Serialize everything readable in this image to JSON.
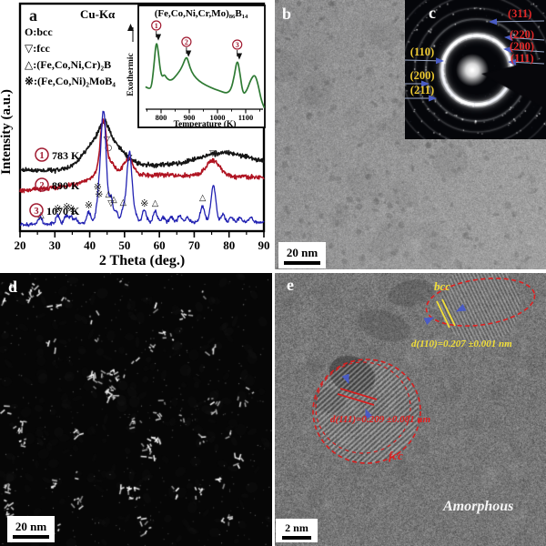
{
  "figure": {
    "panels": {
      "a": {
        "label": "a"
      },
      "b": {
        "label": "b",
        "scale_bar": "20 nm"
      },
      "c": {
        "label": "c",
        "left_labels": [
          {
            "text": "(110)"
          },
          {
            "text": "(200)"
          },
          {
            "text": "(211)"
          }
        ],
        "right_labels": [
          {
            "text": "(311)"
          },
          {
            "text": "(220)"
          },
          {
            "text": "(200)"
          },
          {
            "text": "(111)"
          }
        ]
      },
      "d": {
        "label": "d",
        "scale_bar": "20 nm"
      },
      "e": {
        "label": "e",
        "scale_bar": "2 nm",
        "annotations": {
          "bcc_label": "bcc",
          "bcc_spacing": "d(110)=0.207 ±0.001 nm",
          "fcc_label": "fcc",
          "fcc_spacing": "d(111)=0.209 ±0.001 nm",
          "matrix": "Amorphous"
        }
      }
    }
  },
  "chart_data": [
    {
      "id": "xrd",
      "type": "line",
      "title": "Cu-Kα",
      "xlabel": "2 Theta (deg.)",
      "ylabel": "Intensity (a.u.)",
      "xlim": [
        20,
        90
      ],
      "xticks": [
        20,
        30,
        40,
        50,
        60,
        70,
        80,
        90
      ],
      "legend": [
        {
          "symbol": "O",
          "phase": "bcc"
        },
        {
          "symbol": "▽",
          "phase": "fcc"
        },
        {
          "symbol": "△",
          "phase": "(Fe,Co,Ni,Cr)₂B"
        },
        {
          "symbol": "※",
          "phase": "(Fe,Co,Ni)₂MoB₄"
        }
      ],
      "series": [
        {
          "index": "1",
          "annealing_temp": "783 K",
          "color": "#151515",
          "noise": 2.3,
          "baseline": [
            [
              20,
              187
            ],
            [
              35,
              188
            ],
            [
              55,
              182
            ],
            [
              75,
              180
            ],
            [
              90,
              181
            ]
          ],
          "peaks": [
            {
              "t": 43.8,
              "a": 38,
              "w": 4.6
            },
            {
              "t": 44.1,
              "a": 15,
              "w": 1.2
            },
            {
              "t": 79,
              "a": 12,
              "w": 7
            }
          ],
          "markers": [
            {
              "sym": "▽",
              "t": 44.9,
              "y": 156
            },
            {
              "sym": "○",
              "t": 45.4,
              "y": 165
            }
          ]
        },
        {
          "index": "2",
          "annealing_temp": "890 K",
          "color": "#b01422",
          "noise": 2.2,
          "baseline": [
            [
              20,
              210
            ],
            [
              40,
              202
            ],
            [
              47,
              194
            ],
            [
              60,
              192
            ],
            [
              90,
              195
            ]
          ],
          "peaks": [
            {
              "t": 44,
              "a": 8,
              "w": 4.5
            },
            {
              "t": 43.9,
              "a": 58,
              "w": 0.9
            },
            {
              "t": 46.4,
              "a": 8,
              "w": 0.8
            },
            {
              "t": 51.2,
              "a": 17,
              "w": 1.3
            },
            {
              "t": 75.4,
              "a": 17,
              "w": 1.9
            }
          ],
          "markers": [
            {
              "sym": "▽",
              "t": 51.3,
              "y": 176
            },
            {
              "sym": "▽",
              "t": 75.3,
              "y": 171
            }
          ]
        },
        {
          "index": "3",
          "annealing_temp": "1070 K",
          "color": "#2222b2",
          "noise": 1.7,
          "baseline": [
            [
              20,
              247
            ],
            [
              40,
              245
            ],
            [
              50,
              244
            ],
            [
              90,
              244
            ]
          ],
          "peaks": [
            {
              "t": 25.8,
              "a": 7,
              "w": 0.55
            },
            {
              "t": 30.8,
              "a": 9,
              "w": 0.55
            },
            {
              "t": 33.3,
              "a": 9,
              "w": 0.55
            },
            {
              "t": 34.6,
              "a": 7,
              "w": 0.5
            },
            {
              "t": 35.9,
              "a": 5,
              "w": 0.5
            },
            {
              "t": 39.7,
              "a": 12,
              "w": 0.55
            },
            {
              "t": 42.6,
              "a": 25,
              "w": 0.7
            },
            {
              "t": 44.0,
              "a": 120,
              "w": 0.75
            },
            {
              "t": 46.1,
              "a": 27,
              "w": 0.55
            },
            {
              "t": 47.6,
              "a": 12,
              "w": 0.5
            },
            {
              "t": 49.6,
              "a": 14,
              "w": 0.55
            },
            {
              "t": 51.4,
              "a": 77,
              "w": 0.75
            },
            {
              "t": 53.2,
              "a": 7,
              "w": 0.5
            },
            {
              "t": 55.7,
              "a": 14,
              "w": 0.55
            },
            {
              "t": 58.8,
              "a": 12,
              "w": 0.55
            },
            {
              "t": 61.1,
              "a": 5,
              "w": 0.5
            },
            {
              "t": 63.4,
              "a": 6,
              "w": 0.5
            },
            {
              "t": 65.8,
              "a": 7,
              "w": 0.5
            },
            {
              "t": 68.1,
              "a": 5,
              "w": 0.5
            },
            {
              "t": 72.4,
              "a": 18,
              "w": 0.6
            },
            {
              "t": 75.5,
              "a": 40,
              "w": 0.7
            },
            {
              "t": 78.2,
              "a": 9,
              "w": 0.5
            },
            {
              "t": 80.6,
              "a": 5,
              "w": 0.5
            },
            {
              "t": 83.1,
              "a": 5,
              "w": 0.5
            },
            {
              "t": 86.2,
              "a": 6,
              "w": 0.5
            }
          ],
          "markers": [
            {
              "sym": "△",
              "t": 26.0,
              "y": 239
            },
            {
              "sym": "※",
              "t": 30.8,
              "y": 233
            },
            {
              "sym": "※",
              "t": 33.4,
              "y": 231
            },
            {
              "sym": "※",
              "t": 34.7,
              "y": 233
            },
            {
              "sym": "△",
              "t": 35.6,
              "y": 234
            },
            {
              "sym": "※",
              "t": 39.7,
              "y": 229
            },
            {
              "sym": "※",
              "t": 42.3,
              "y": 209
            },
            {
              "sym": "※",
              "t": 42.7,
              "y": 217
            },
            {
              "sym": "△",
              "t": 45.4,
              "y": 216
            },
            {
              "sym": "▽",
              "t": 46.1,
              "y": 226
            },
            {
              "sym": "△",
              "t": 46.9,
              "y": 222
            },
            {
              "sym": "△",
              "t": 49.6,
              "y": 225
            },
            {
              "sym": "※",
              "t": 55.7,
              "y": 227
            },
            {
              "sym": "△",
              "t": 58.8,
              "y": 226
            },
            {
              "sym": "△",
              "t": 72.4,
              "y": 220
            }
          ]
        }
      ]
    },
    {
      "id": "dsc",
      "type": "line",
      "title": "(Fe,Co,Ni,Cr,Mo)₈₆B₁₄",
      "xlabel": "Temperature (K)",
      "ylabel": "Exothermic",
      "xticks": [
        800,
        900,
        1000,
        1100
      ],
      "color": "#2e7a33",
      "curve_points": [
        [
          745,
          0.3
        ],
        [
          758,
          0.27
        ],
        [
          766,
          0.3
        ],
        [
          774,
          0.55
        ],
        [
          783,
          0.93
        ],
        [
          790,
          0.78
        ],
        [
          797,
          0.52
        ],
        [
          804,
          0.43
        ],
        [
          812,
          0.47
        ],
        [
          820,
          0.41
        ],
        [
          836,
          0.38
        ],
        [
          856,
          0.46
        ],
        [
          874,
          0.56
        ],
        [
          890,
          0.72
        ],
        [
          898,
          0.62
        ],
        [
          908,
          0.5
        ],
        [
          925,
          0.41
        ],
        [
          945,
          0.35
        ],
        [
          975,
          0.29
        ],
        [
          1005,
          0.25
        ],
        [
          1032,
          0.21
        ],
        [
          1048,
          0.26
        ],
        [
          1060,
          0.45
        ],
        [
          1070,
          0.68
        ],
        [
          1079,
          0.5
        ],
        [
          1090,
          0.2
        ],
        [
          1103,
          0.24
        ],
        [
          1118,
          0.4
        ],
        [
          1132,
          0.47
        ],
        [
          1143,
          0.35
        ],
        [
          1155,
          0.12
        ],
        [
          1166,
          0.02
        ]
      ],
      "peak_markers": [
        {
          "label": "1",
          "T": 783
        },
        {
          "label": "2",
          "T": 890
        },
        {
          "label": "3",
          "T": 1070
        }
      ]
    }
  ]
}
